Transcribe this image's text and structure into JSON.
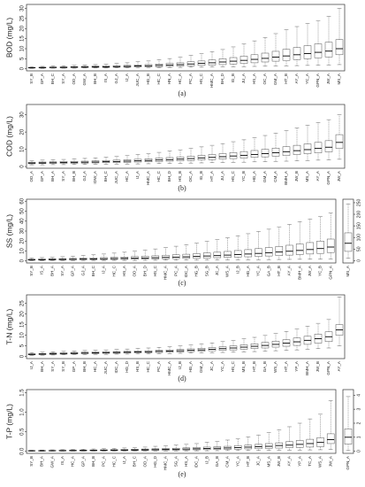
{
  "chart_data": [
    {
      "type": "box",
      "y_label": "BOD (mg/L)",
      "caption": "(a)",
      "color": "#444",
      "categories": [
        "SY_B",
        "GP_A",
        "BH_C",
        "SY_A",
        "OD_A",
        "GW_A",
        "BH_B",
        "IS_A",
        "GJ_A",
        "IJ_A",
        "JUC_A",
        "HG_B",
        "HC_C",
        "HN_A",
        "HC_A",
        "PC_A",
        "HS_C",
        "HMC_A",
        "BH_D",
        "IG_B",
        "JU_A",
        "HS_A",
        "OC_A",
        "GM_A",
        "HT_B",
        "AY_A",
        "YC_A",
        "GPN_A",
        "JW_A",
        "MS_A"
      ],
      "boxes": [
        [
          0.2,
          0.4,
          0.5,
          0.7,
          1.0
        ],
        [
          0.2,
          0.4,
          0.6,
          0.8,
          1.2
        ],
        [
          0.3,
          0.5,
          0.7,
          0.9,
          1.4
        ],
        [
          0.3,
          0.5,
          0.7,
          1.0,
          1.5
        ],
        [
          0.3,
          0.6,
          0.8,
          1.1,
          1.7
        ],
        [
          0.4,
          0.6,
          0.9,
          1.2,
          1.9
        ],
        [
          0.4,
          0.7,
          1.0,
          1.3,
          2.1
        ],
        [
          0.4,
          0.7,
          1.0,
          1.4,
          2.4
        ],
        [
          0.5,
          0.8,
          1.1,
          1.6,
          2.7
        ],
        [
          0.5,
          0.8,
          1.2,
          1.7,
          3.0
        ],
        [
          0.5,
          0.9,
          1.4,
          1.9,
          3.5
        ],
        [
          0.6,
          1.0,
          1.5,
          2.1,
          3.9
        ],
        [
          0.6,
          1.1,
          1.7,
          2.4,
          4.5
        ],
        [
          0.7,
          1.2,
          1.9,
          2.7,
          5.1
        ],
        [
          0.7,
          1.4,
          2.1,
          3.0,
          5.8
        ],
        [
          0.8,
          1.5,
          2.4,
          3.5,
          6.6
        ],
        [
          0.8,
          1.7,
          2.7,
          3.9,
          7.5
        ],
        [
          0.9,
          1.9,
          3.0,
          4.4,
          8.5
        ],
        [
          1.0,
          2.1,
          3.4,
          5.0,
          9.6
        ],
        [
          1.0,
          2.4,
          3.8,
          5.6,
          10.9
        ],
        [
          1.1,
          2.7,
          4.2,
          6.3,
          12.3
        ],
        [
          1.2,
          3.0,
          4.7,
          7.0,
          13.9
        ],
        [
          1.3,
          3.4,
          5.2,
          7.8,
          15.6
        ],
        [
          1.4,
          3.8,
          5.8,
          8.7,
          17.5
        ],
        [
          1.5,
          4.2,
          6.4,
          9.7,
          19.5
        ],
        [
          1.6,
          4.6,
          7.0,
          10.6,
          21.0
        ],
        [
          1.7,
          5.0,
          7.6,
          11.5,
          22.5
        ],
        [
          1.8,
          5.5,
          8.2,
          12.4,
          24.0
        ],
        [
          1.9,
          5.9,
          8.8,
          13.2,
          26.0
        ],
        [
          2.1,
          7.0,
          10.0,
          14.5,
          30.0
        ]
      ],
      "ylim": [
        -1,
        32
      ],
      "yticks": [
        0,
        5,
        10,
        15,
        20,
        25,
        30
      ]
    },
    {
      "type": "box",
      "y_label": "COD (mg/L)",
      "caption": "(b)",
      "color": "#444",
      "categories": [
        "OD_A",
        "GP_A",
        "BH_A",
        "SY_A",
        "BH_B",
        "GJ_A",
        "IDW_A",
        "BH_C",
        "JUC_A",
        "HC_A",
        "IJ_A",
        "HMC_A",
        "HC_C",
        "BH_D",
        "HS_B",
        "OC_A",
        "IG_B",
        "HT_A",
        "JU_A",
        "HS_C",
        "YC_B",
        "HG_A",
        "GM_A",
        "CM_A",
        "BMH_A",
        "JW_B",
        "MS_A",
        "AY_A",
        "GPN_A",
        "JW_A"
      ],
      "boxes": [
        [
          1.0,
          1.6,
          2.0,
          2.5,
          3.5
        ],
        [
          1.0,
          1.7,
          2.1,
          2.6,
          3.7
        ],
        [
          1.1,
          1.8,
          2.2,
          2.7,
          3.9
        ],
        [
          1.1,
          1.9,
          2.3,
          2.9,
          4.1
        ],
        [
          1.2,
          1.9,
          2.4,
          3.0,
          4.4
        ],
        [
          1.2,
          2.0,
          2.5,
          3.1,
          4.7
        ],
        [
          1.3,
          2.1,
          2.6,
          3.3,
          5.0
        ],
        [
          1.3,
          2.2,
          2.8,
          3.5,
          5.4
        ],
        [
          1.4,
          2.3,
          2.9,
          3.7,
          5.8
        ],
        [
          1.4,
          2.4,
          3.1,
          3.9,
          6.3
        ],
        [
          1.5,
          2.6,
          3.3,
          4.2,
          6.9
        ],
        [
          1.6,
          2.7,
          3.5,
          4.5,
          7.5
        ],
        [
          1.7,
          2.9,
          3.8,
          4.9,
          8.2
        ],
        [
          1.8,
          3.1,
          4.0,
          5.2,
          8.9
        ],
        [
          1.9,
          3.3,
          4.3,
          5.6,
          9.7
        ],
        [
          2.0,
          3.5,
          4.6,
          6.0,
          10.5
        ],
        [
          2.1,
          3.8,
          5.0,
          6.5,
          11.4
        ],
        [
          2.2,
          4.0,
          5.3,
          7.0,
          12.3
        ],
        [
          2.3,
          4.3,
          5.7,
          7.5,
          13.3
        ],
        [
          2.4,
          4.6,
          6.1,
          8.1,
          14.4
        ],
        [
          2.5,
          4.9,
          6.5,
          8.7,
          15.5
        ],
        [
          2.7,
          5.3,
          7.0,
          9.3,
          16.7
        ],
        [
          2.8,
          5.6,
          7.5,
          10.0,
          18.0
        ],
        [
          3.0,
          6.0,
          8.0,
          10.7,
          19.4
        ],
        [
          3.1,
          6.4,
          8.6,
          11.5,
          20.9
        ],
        [
          3.3,
          6.9,
          9.2,
          12.3,
          22.4
        ],
        [
          3.5,
          7.4,
          9.8,
          13.1,
          23.9
        ],
        [
          3.7,
          7.9,
          10.5,
          14.0,
          25.5
        ],
        [
          3.9,
          8.5,
          11.2,
          15.0,
          27.2
        ],
        [
          4.2,
          10.5,
          14.0,
          18.5,
          30.0
        ]
      ],
      "ylim": [
        -1,
        36
      ],
      "yticks": [
        0,
        10,
        20,
        30
      ]
    },
    {
      "type": "box",
      "y_label": "SS (mg/L)",
      "caption": "(c)",
      "color": "#444",
      "categories": [
        "SY_B",
        "IS_A",
        "BH_A",
        "SY_A",
        "GP_A",
        "GJ_A",
        "BH_C",
        "IJ_A",
        "HC_C",
        "HS_A",
        "OD_A",
        "BH_D",
        "HS_C",
        "HMC_A",
        "PC_A",
        "IDC_A",
        "HG_B",
        "SG_B",
        "JC_A",
        "WS_A",
        "IJ_B",
        "HG_A",
        "YC_A",
        "GA_B",
        "HT_B",
        "AY_A",
        "BMH_A",
        "JW_A",
        "YC_B",
        "GPN_A"
      ],
      "boxes": [
        [
          0.3,
          0.8,
          1.2,
          1.8,
          3.0
        ],
        [
          0.3,
          0.9,
          1.3,
          2.0,
          3.4
        ],
        [
          0.4,
          1.0,
          1.5,
          2.2,
          3.8
        ],
        [
          0.4,
          1.0,
          1.6,
          2.4,
          4.3
        ],
        [
          0.4,
          1.1,
          1.7,
          2.6,
          4.9
        ],
        [
          0.5,
          1.2,
          1.9,
          2.9,
          5.5
        ],
        [
          0.5,
          1.3,
          2.0,
          3.1,
          6.2
        ],
        [
          0.5,
          1.4,
          2.2,
          3.4,
          7.0
        ],
        [
          0.6,
          1.5,
          2.4,
          3.7,
          7.9
        ],
        [
          0.6,
          1.6,
          2.6,
          4.0,
          8.8
        ],
        [
          0.6,
          1.7,
          2.8,
          4.4,
          9.8
        ],
        [
          0.7,
          1.9,
          3.0,
          4.8,
          10.9
        ],
        [
          0.7,
          2.0,
          3.3,
          5.2,
          12.1
        ],
        [
          0.8,
          2.2,
          3.6,
          5.7,
          13.4
        ],
        [
          0.8,
          2.4,
          3.9,
          6.2,
          14.8
        ],
        [
          0.9,
          2.6,
          4.2,
          6.8,
          16.3
        ],
        [
          0.9,
          2.8,
          4.6,
          7.4,
          17.9
        ],
        [
          1.0,
          3.0,
          5.0,
          8.1,
          19.6
        ],
        [
          1.0,
          3.3,
          5.4,
          8.8,
          21.4
        ],
        [
          1.1,
          3.6,
          5.9,
          9.6,
          23.3
        ],
        [
          1.2,
          3.9,
          6.4,
          10.5,
          25.3
        ],
        [
          1.2,
          4.2,
          7.0,
          11.4,
          27.4
        ],
        [
          1.3,
          4.6,
          7.6,
          12.4,
          29.6
        ],
        [
          1.4,
          5.0,
          8.3,
          13.5,
          31.9
        ],
        [
          1.5,
          5.4,
          9.0,
          14.6,
          34.3
        ],
        [
          1.6,
          5.9,
          9.8,
          15.8,
          36.8
        ],
        [
          1.7,
          6.4,
          10.6,
          17.1,
          39.4
        ],
        [
          1.8,
          7.0,
          11.5,
          18.5,
          42.1
        ],
        [
          1.9,
          7.6,
          12.5,
          20.0,
          44.9
        ],
        [
          2.0,
          8.5,
          14.0,
          22.0,
          48.0
        ]
      ],
      "ylim": [
        -2,
        62
      ],
      "yticks": [
        0,
        10,
        20,
        30,
        40,
        50,
        60
      ]
    },
    {
      "type": "box",
      "color": "#444",
      "categories": [
        "MS_A"
      ],
      "boxes": [
        [
          10,
          40,
          75,
          120,
          245
        ]
      ],
      "ylim": [
        -10,
        265
      ],
      "yticks": [
        0,
        50,
        100,
        150,
        200,
        250
      ]
    },
    {
      "type": "box",
      "y_label": "T-N (mg/L)",
      "caption": "(d)",
      "color": "#444",
      "categories": [
        "IJ_A",
        "BH_A",
        "SY_A",
        "SY_B",
        "GP_A",
        "BH_B",
        "HC_A",
        "JUC_A",
        "IDC_A",
        "HG_D",
        "HS_B",
        "HC_C",
        "PC_A",
        "HMC_A",
        "IJ_B",
        "HG_A",
        "GM_A",
        "JC_A",
        "YC_A",
        "HS_C",
        "MS_B",
        "HT_B",
        "GA_B",
        "WS_A",
        "HT_A",
        "YP_A",
        "BMH_A",
        "JW_B",
        "GPN_A",
        "AY_A"
      ],
      "boxes": [
        [
          0.5,
          0.8,
          1.0,
          1.3,
          1.8
        ],
        [
          0.6,
          0.9,
          1.1,
          1.4,
          2.0
        ],
        [
          0.7,
          1.0,
          1.3,
          1.6,
          2.2
        ],
        [
          0.8,
          1.1,
          1.4,
          1.7,
          2.4
        ],
        [
          0.9,
          1.2,
          1.5,
          1.9,
          2.6
        ],
        [
          0.9,
          1.3,
          1.6,
          2.0,
          2.8
        ],
        [
          1.0,
          1.4,
          1.7,
          2.1,
          3.0
        ],
        [
          1.0,
          1.5,
          1.8,
          2.2,
          3.1
        ],
        [
          1.1,
          1.5,
          1.9,
          2.3,
          3.3
        ],
        [
          1.1,
          1.6,
          2.0,
          2.4,
          3.5
        ],
        [
          1.2,
          1.7,
          2.1,
          2.6,
          3.8
        ],
        [
          1.2,
          1.8,
          2.2,
          2.7,
          4.0
        ],
        [
          1.3,
          1.9,
          2.4,
          2.9,
          4.3
        ],
        [
          1.4,
          2.0,
          2.5,
          3.1,
          4.6
        ],
        [
          1.5,
          2.1,
          2.7,
          3.3,
          5.0
        ],
        [
          1.6,
          2.3,
          2.9,
          3.6,
          5.4
        ],
        [
          1.7,
          2.5,
          3.1,
          3.9,
          5.9
        ],
        [
          1.8,
          2.7,
          3.4,
          4.2,
          6.4
        ],
        [
          1.9,
          2.9,
          3.7,
          4.6,
          7.0
        ],
        [
          2.0,
          3.1,
          4.0,
          5.0,
          7.6
        ],
        [
          2.2,
          3.4,
          4.4,
          5.5,
          8.3
        ],
        [
          2.3,
          3.7,
          4.8,
          6.0,
          9.0
        ],
        [
          2.5,
          4.0,
          5.2,
          6.6,
          9.9
        ],
        [
          2.7,
          4.4,
          5.7,
          7.2,
          10.8
        ],
        [
          2.9,
          4.8,
          6.3,
          7.9,
          11.8
        ],
        [
          3.1,
          5.2,
          6.9,
          8.7,
          12.9
        ],
        [
          3.4,
          5.7,
          7.6,
          9.5,
          14.2
        ],
        [
          3.7,
          6.3,
          8.4,
          10.5,
          15.6
        ],
        [
          4.0,
          7.0,
          9.3,
          11.6,
          17.4
        ],
        [
          5.0,
          10.0,
          12.5,
          15.0,
          28.0
        ]
      ],
      "ylim": [
        -1,
        29
      ],
      "yticks": [
        0,
        5,
        10,
        15,
        20,
        25
      ]
    },
    {
      "type": "box",
      "y_label": "T-P (mg/L)",
      "caption": "(e)",
      "color": "#444",
      "categories": [
        "SY_B",
        "BH_A",
        "GW_A",
        "IS_A",
        "HC_A",
        "GP_A",
        "BH_B",
        "PC_A",
        "HC_C",
        "IJ_A",
        "BH_C",
        "OD_A",
        "HG_D",
        "HMC_A",
        "SG_A",
        "HS_A",
        "IDC_A",
        "IJ_B",
        "GA_B",
        "CM_A",
        "YC_A",
        "HT_B",
        "JC_A",
        "MS_A",
        "JW_B",
        "AY_A",
        "YP_A",
        "TC_A",
        "WS_A",
        "JW_A"
      ],
      "boxes": [
        [
          0.005,
          0.01,
          0.015,
          0.02,
          0.03
        ],
        [
          0.005,
          0.01,
          0.016,
          0.022,
          0.035
        ],
        [
          0.006,
          0.012,
          0.018,
          0.025,
          0.04
        ],
        [
          0.006,
          0.013,
          0.02,
          0.028,
          0.045
        ],
        [
          0.007,
          0.014,
          0.022,
          0.031,
          0.05
        ],
        [
          0.007,
          0.015,
          0.024,
          0.034,
          0.056
        ],
        [
          0.008,
          0.016,
          0.026,
          0.037,
          0.063
        ],
        [
          0.008,
          0.018,
          0.028,
          0.041,
          0.07
        ],
        [
          0.009,
          0.019,
          0.031,
          0.045,
          0.078
        ],
        [
          0.009,
          0.021,
          0.034,
          0.05,
          0.088
        ],
        [
          0.01,
          0.023,
          0.037,
          0.055,
          0.1
        ],
        [
          0.01,
          0.025,
          0.041,
          0.061,
          0.11
        ],
        [
          0.011,
          0.027,
          0.045,
          0.067,
          0.13
        ],
        [
          0.012,
          0.03,
          0.05,
          0.074,
          0.14
        ],
        [
          0.013,
          0.033,
          0.055,
          0.082,
          0.16
        ],
        [
          0.014,
          0.036,
          0.06,
          0.09,
          0.18
        ],
        [
          0.015,
          0.04,
          0.066,
          0.1,
          0.2
        ],
        [
          0.016,
          0.044,
          0.073,
          0.11,
          0.23
        ],
        [
          0.018,
          0.048,
          0.08,
          0.12,
          0.26
        ],
        [
          0.02,
          0.053,
          0.088,
          0.13,
          0.29
        ],
        [
          0.021,
          0.058,
          0.097,
          0.15,
          0.33
        ],
        [
          0.023,
          0.064,
          0.11,
          0.16,
          0.37
        ],
        [
          0.025,
          0.07,
          0.12,
          0.18,
          0.42
        ],
        [
          0.027,
          0.077,
          0.13,
          0.2,
          0.48
        ],
        [
          0.03,
          0.085,
          0.15,
          0.22,
          0.55
        ],
        [
          0.032,
          0.094,
          0.16,
          0.25,
          0.63
        ],
        [
          0.035,
          0.1,
          0.18,
          0.28,
          0.72
        ],
        [
          0.038,
          0.11,
          0.2,
          0.31,
          0.83
        ],
        [
          0.042,
          0.12,
          0.23,
          0.35,
          0.95
        ],
        [
          0.05,
          0.2,
          0.3,
          0.45,
          1.3
        ]
      ],
      "ylim": [
        -0.05,
        1.58
      ],
      "yticks": [
        {
          "value": 0,
          "label": "0.0"
        },
        {
          "value": 0.5,
          "label": "0.5"
        },
        {
          "value": 1,
          "label": "1.0"
        },
        {
          "value": 1.5,
          "label": "1.5"
        }
      ]
    },
    {
      "type": "box",
      "color": "#444",
      "categories": [
        "GPN_A"
      ],
      "boxes": [
        [
          0.05,
          0.5,
          1.0,
          1.6,
          3.9
        ]
      ],
      "ylim": [
        -0.15,
        4.4
      ],
      "yticks": [
        0,
        1,
        2,
        3,
        4
      ]
    }
  ]
}
